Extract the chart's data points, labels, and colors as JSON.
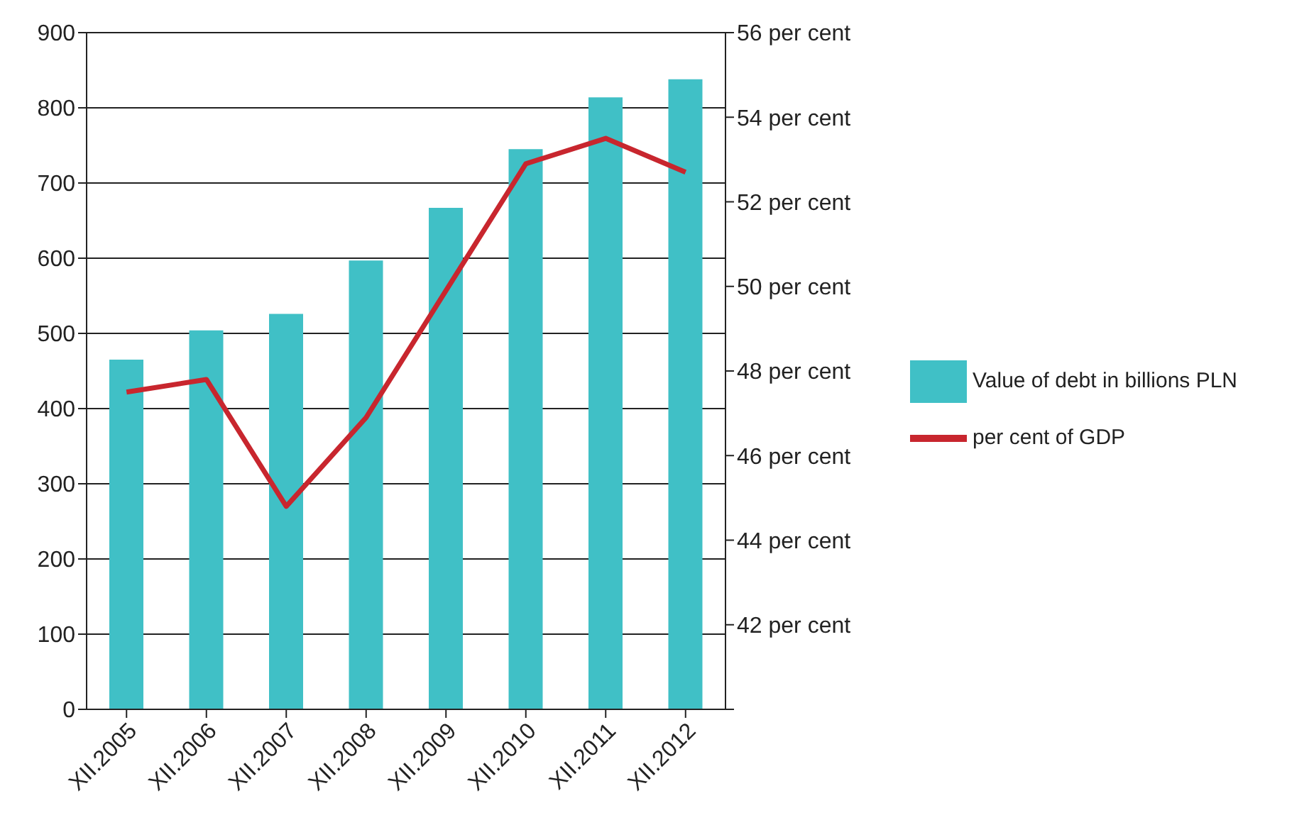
{
  "chart_data": {
    "type": "bar",
    "categories": [
      "XII.2005",
      "XII.2006",
      "XII.2007",
      "XII.2008",
      "XII.2009",
      "XII.2010",
      "XII.2011",
      "XII.2012"
    ],
    "series": [
      {
        "name": "Value of debt in billions PLN",
        "color": "#40c0c6",
        "values": [
          465,
          504,
          526,
          597,
          667,
          745,
          814,
          838
        ]
      },
      {
        "name": "per cent of GDP",
        "type": "line",
        "axis": "y2",
        "color": "#c8262e",
        "values": [
          47.5,
          47.8,
          44.8,
          46.9,
          49.9,
          52.9,
          53.5,
          52.7
        ]
      }
    ],
    "ylim": [
      0,
      900
    ],
    "yticks": [
      0,
      100,
      200,
      300,
      400,
      500,
      600,
      700,
      800,
      900
    ],
    "y2lim": [
      40,
      56
    ],
    "y2ticks": [
      {
        "value": 40,
        "label": null
      },
      {
        "value": 42,
        "label": "42 per cent"
      },
      {
        "value": 44,
        "label": "44 per cent"
      },
      {
        "value": 46,
        "label": "46 per cent"
      },
      {
        "value": 48,
        "label": "48 per cent"
      },
      {
        "value": 50,
        "label": "50 per cent"
      },
      {
        "value": 52,
        "label": "52 per cent"
      },
      {
        "value": 54,
        "label": "54 per cent"
      },
      {
        "value": 56,
        "label": "56 per cent"
      }
    ],
    "grid": "y",
    "legend": "right",
    "marker": "none",
    "line_style": "solid"
  }
}
